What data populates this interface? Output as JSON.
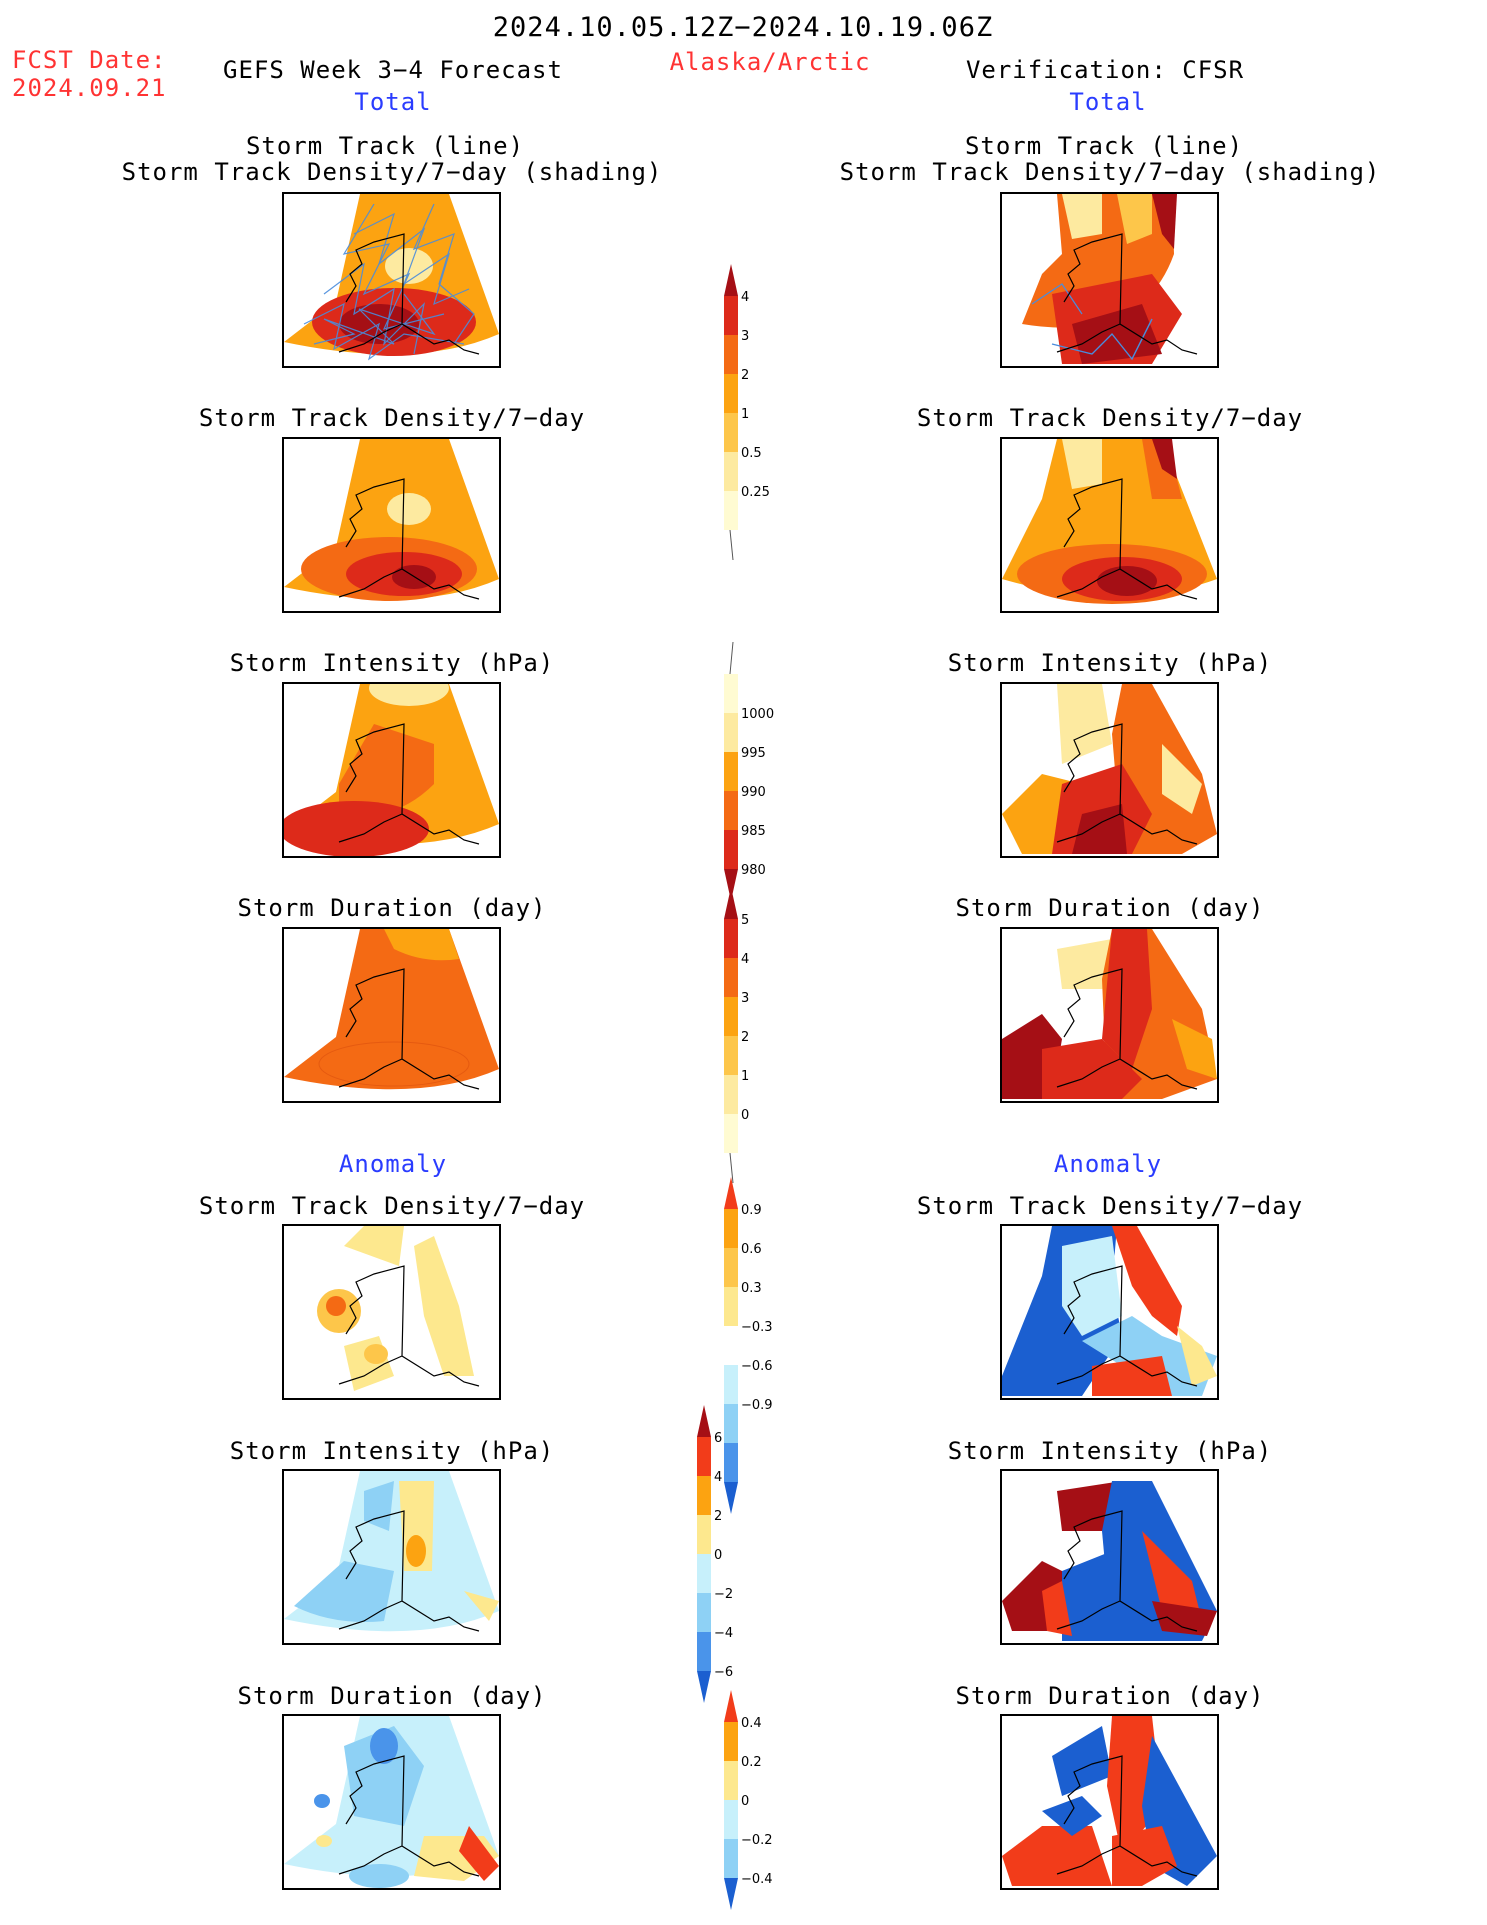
{
  "header": {
    "date_range": "2024.10.05.12Z−2024.10.19.06Z",
    "fcst_label": "FCST Date:",
    "fcst_date": "2024.09.21",
    "model_title": "GEFS Week 3−4 Forecast",
    "region": "Alaska/Arctic",
    "verification": "Verification: CFSR"
  },
  "sections": {
    "total": "Total",
    "anomaly": "Anomaly"
  },
  "panel_titles": {
    "track_line": "Storm Track (line)",
    "track_density_shading": "Storm Track Density/7−day (shading)",
    "track_density": "Storm Track Density/7−day",
    "intensity": "Storm Intensity (hPa)",
    "duration": "Storm Duration (day)"
  },
  "colorbars": [
    {
      "id": "density",
      "labels": [
        "4",
        "3",
        "2",
        "1",
        "0.5",
        "0.25"
      ],
      "colors": [
        "#a50f15",
        "#dd2a1a",
        "#f46a14",
        "#fca311",
        "#fdc64a",
        "#fdeaa0",
        "#fffbd2"
      ]
    },
    {
      "id": "intensity",
      "labels": [
        "1000",
        "995",
        "990",
        "985",
        "980"
      ],
      "colors": [
        "#fffbd2",
        "#fdeaa0",
        "#fca311",
        "#f46a14",
        "#dd2a1a",
        "#a50f15"
      ]
    },
    {
      "id": "duration",
      "labels": [
        "5",
        "4",
        "3",
        "2",
        "1",
        "0"
      ],
      "colors": [
        "#a50f15",
        "#dd2a1a",
        "#f46a14",
        "#fca311",
        "#fdc64a",
        "#fdeaa0",
        "#fffbd2"
      ]
    },
    {
      "id": "density_anom",
      "labels": [
        "0.9",
        "0.6",
        "0.3",
        "−0.3",
        "−0.6",
        "−0.9"
      ],
      "colors": [
        "#f23c1a",
        "#fca311",
        "#fdc64a",
        "#fde88e",
        "#ffffff",
        "#c7f0fb",
        "#8ed1f5",
        "#4a94ea",
        "#1b5fd0"
      ]
    },
    {
      "id": "intensity_anom",
      "labels": [
        "6",
        "4",
        "2",
        "0",
        "−2",
        "−4",
        "−6"
      ],
      "colors": [
        "#a50f15",
        "#f23c1a",
        "#fca311",
        "#fde88e",
        "#c7f0fb",
        "#8ed1f5",
        "#4a94ea",
        "#1b5fd0"
      ]
    },
    {
      "id": "duration_anom",
      "labels": [
        "0.4",
        "0.2",
        "0",
        "−0.2",
        "−0.4"
      ],
      "colors": [
        "#f23c1a",
        "#fca311",
        "#fde88e",
        "#c7f0fb",
        "#8ed1f5",
        "#1b5fd0"
      ]
    }
  ],
  "colors": {
    "dark_red": "#a50f15",
    "red": "#dd2a1a",
    "orange_red": "#f46a14",
    "orange": "#fca311",
    "light_orange": "#fdc64a",
    "pale_yellow": "#fdeaa0",
    "cream": "#fffbd2",
    "track_line": "#4a8cdc",
    "light_blue": "#c7f0fb",
    "sky_blue": "#8ed1f5",
    "mid_blue": "#4a94ea",
    "deep_blue": "#1b5fd0",
    "anom_red": "#f23c1a"
  }
}
